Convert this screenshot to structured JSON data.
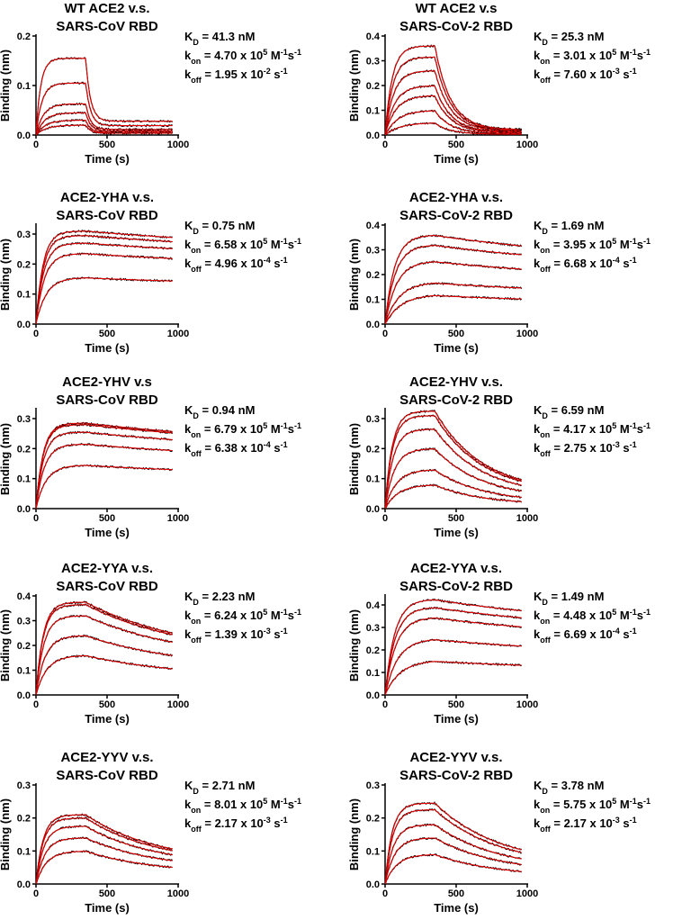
{
  "colors": {
    "data_trace": "#000000",
    "fit_curve": "#e00000",
    "axis": "#000000"
  },
  "axis_labels": {
    "x": "Time (s)",
    "y": "Binding (nm)"
  },
  "chart_data": [
    {
      "type": "line",
      "title": [
        "WT ACE2 v.s.",
        "SARS-CoV RBD"
      ],
      "xlabel": "Time (s)",
      "ylabel": "Binding (nm)",
      "xlim": [
        0,
        1000
      ],
      "ylim": [
        0,
        0.2
      ],
      "xticks": [
        0,
        500,
        1000
      ],
      "yticks": [
        0.0,
        0.1,
        0.2
      ],
      "association_end_s": 350,
      "series_plateau_nm": [
        0.155,
        0.105,
        0.063,
        0.045,
        0.03,
        0.02
      ],
      "dissociation_residual_fraction": 0.18,
      "association_rate_per_s": 0.03,
      "dissociation_rate_per_s": 0.03,
      "kinetics": {
        "kd_value": "41.3 nM",
        "kon_value": "4.70 x 10",
        "kon_exp": "5",
        "koff_value": "1.95 x 10",
        "koff_exp": "-2"
      }
    },
    {
      "type": "line",
      "title": [
        "WT ACE2 v.s",
        "SARS-CoV-2 RBD"
      ],
      "xlabel": "Time (s)",
      "ylabel": "Binding (nm)",
      "xlim": [
        0,
        1000
      ],
      "ylim": [
        0,
        0.4
      ],
      "xticks": [
        0,
        500,
        1000
      ],
      "yticks": [
        0.0,
        0.1,
        0.2,
        0.3,
        0.4
      ],
      "association_end_s": 350,
      "series_plateau_nm": [
        0.36,
        0.315,
        0.26,
        0.2,
        0.16,
        0.1,
        0.05
      ],
      "dissociation_residual_fraction": 0.06,
      "association_rate_per_s": 0.02,
      "dissociation_rate_per_s": 0.009,
      "kinetics": {
        "kd_value": "25.3 nM",
        "kon_value": "3.01 x 10",
        "kon_exp": "5",
        "koff_value": "7.60 x 10",
        "koff_exp": "-3"
      }
    },
    {
      "type": "line",
      "title": [
        "ACE2-YHA v.s.",
        "SARS-CoV RBD"
      ],
      "xlabel": "Time (s)",
      "ylabel": "Binding (nm)",
      "xlim": [
        0,
        1000
      ],
      "ylim": [
        0,
        0.33
      ],
      "xticks": [
        0,
        500,
        1000
      ],
      "yticks": [
        0.0,
        0.1,
        0.2,
        0.3
      ],
      "association_end_s": 350,
      "series_plateau_nm": [
        0.31,
        0.295,
        0.27,
        0.235,
        0.155
      ],
      "dissociation_residual_fraction": 0.74,
      "association_rate_per_s": 0.02,
      "dissociation_rate_per_s": 0.0005,
      "kinetics": {
        "kd_value": "0.75 nM",
        "kon_value": "6.58 x 10",
        "kon_exp": "5",
        "koff_value": "4.96 x 10",
        "koff_exp": "-4"
      }
    },
    {
      "type": "line",
      "title": [
        "ACE2-YHA v.s.",
        "SARS-CoV-2 RBD"
      ],
      "xlabel": "Time (s)",
      "ylabel": "Binding (nm)",
      "xlim": [
        0,
        1000
      ],
      "ylim": [
        0,
        0.4
      ],
      "xticks": [
        0,
        500,
        1000
      ],
      "yticks": [
        0.0,
        0.1,
        0.2,
        0.3,
        0.4
      ],
      "association_end_s": 350,
      "series_plateau_nm": [
        0.36,
        0.32,
        0.255,
        0.17,
        0.12
      ],
      "dissociation_residual_fraction": 0.66,
      "association_rate_per_s": 0.015,
      "dissociation_rate_per_s": 0.0007,
      "kinetics": {
        "kd_value": "1.69 nM",
        "kon_value": "3.95 x 10",
        "kon_exp": "5",
        "koff_value": "6.68 x 10",
        "koff_exp": "-4"
      }
    },
    {
      "type": "line",
      "title": [
        "ACE2-YHV v.s",
        "SARS-CoV RBD"
      ],
      "xlabel": "Time (s)",
      "ylabel": "Binding (nm)",
      "xlim": [
        0,
        1000
      ],
      "ylim": [
        0,
        0.33
      ],
      "xticks": [
        0,
        500,
        1000
      ],
      "yticks": [
        0.0,
        0.1,
        0.2,
        0.3
      ],
      "association_end_s": 350,
      "series_plateau_nm": [
        0.285,
        0.28,
        0.255,
        0.215,
        0.145
      ],
      "dissociation_residual_fraction": 0.68,
      "association_rate_per_s": 0.02,
      "dissociation_rate_per_s": 0.0006,
      "kinetics": {
        "kd_value": "0.94 nM",
        "kon_value": "6.79 x 10",
        "kon_exp": "5",
        "koff_value": "6.38 x 10",
        "koff_exp": "-4"
      }
    },
    {
      "type": "line",
      "title": [
        "ACE2-YHV v.s.",
        "SARS-CoV-2 RBD"
      ],
      "xlabel": "Time (s)",
      "ylabel": "Binding (nm)",
      "xlim": [
        0,
        1000
      ],
      "ylim": [
        0,
        0.33
      ],
      "xticks": [
        0,
        500,
        1000
      ],
      "yticks": [
        0.0,
        0.1,
        0.2,
        0.3
      ],
      "association_end_s": 350,
      "series_plateau_nm": [
        0.325,
        0.31,
        0.265,
        0.2,
        0.13,
        0.08
      ],
      "dissociation_residual_fraction": 0.16,
      "association_rate_per_s": 0.02,
      "dissociation_rate_per_s": 0.003,
      "kinetics": {
        "kd_value": "6.59 nM",
        "kon_value": "4.17 x 10",
        "kon_exp": "5",
        "koff_value": "2.75 x 10",
        "koff_exp": "-3"
      }
    },
    {
      "type": "line",
      "title": [
        "ACE2-YYA v.s.",
        "SARS-CoV RBD"
      ],
      "xlabel": "Time (s)",
      "ylabel": "Binding (nm)",
      "xlim": [
        0,
        1000
      ],
      "ylim": [
        0,
        0.4
      ],
      "xticks": [
        0,
        500,
        1000
      ],
      "yticks": [
        0.0,
        0.1,
        0.2,
        0.3,
        0.4
      ],
      "association_end_s": 350,
      "series_plateau_nm": [
        0.375,
        0.365,
        0.32,
        0.24,
        0.16
      ],
      "dissociation_residual_fraction": 0.42,
      "association_rate_per_s": 0.02,
      "dissociation_rate_per_s": 0.0014,
      "kinetics": {
        "kd_value": "2.23 nM",
        "kon_value": "6.24 x 10",
        "kon_exp": "5",
        "koff_value": "1.39 x 10",
        "koff_exp": "-3"
      }
    },
    {
      "type": "line",
      "title": [
        "ACE2-YYA v.s.",
        "SARS-CoV-2 RBD"
      ],
      "xlabel": "Time (s)",
      "ylabel": "Binding (nm)",
      "xlim": [
        0,
        1000
      ],
      "ylim": [
        0,
        0.44
      ],
      "xticks": [
        0,
        500,
        1000
      ],
      "yticks": [
        0.0,
        0.1,
        0.2,
        0.3,
        0.4
      ],
      "association_end_s": 350,
      "series_plateau_nm": [
        0.425,
        0.39,
        0.345,
        0.25,
        0.155
      ],
      "dissociation_residual_fraction": 0.67,
      "association_rate_per_s": 0.015,
      "dissociation_rate_per_s": 0.0007,
      "kinetics": {
        "kd_value": "1.49 nM",
        "kon_value": "4.48 x 10",
        "kon_exp": "5",
        "koff_value": "6.69 x 10",
        "koff_exp": "-4"
      }
    },
    {
      "type": "line",
      "title": [
        "ACE2-YYV v.s.",
        "SARS-CoV RBD"
      ],
      "xlabel": "Time (s)",
      "ylabel": "Binding (nm)",
      "xlim": [
        0,
        1000
      ],
      "ylim": [
        0,
        0.3
      ],
      "xticks": [
        0,
        500,
        1000
      ],
      "yticks": [
        0.0,
        0.1,
        0.2,
        0.3
      ],
      "association_end_s": 350,
      "series_plateau_nm": [
        0.21,
        0.2,
        0.175,
        0.14,
        0.1
      ],
      "dissociation_residual_fraction": 0.3,
      "association_rate_per_s": 0.02,
      "dissociation_rate_per_s": 0.002,
      "kinetics": {
        "kd_value": "2.71 nM",
        "kon_value": "8.01 x 10",
        "kon_exp": "5",
        "koff_value": "2.17 x 10",
        "koff_exp": "-3"
      }
    },
    {
      "type": "line",
      "title": [
        "ACE2-YYV v.s.",
        "SARS-CoV-2 RBD"
      ],
      "xlabel": "Time (s)",
      "ylabel": "Binding (nm)",
      "xlim": [
        0,
        1000
      ],
      "ylim": [
        0,
        0.3
      ],
      "xticks": [
        0,
        500,
        1000
      ],
      "yticks": [
        0.0,
        0.1,
        0.2,
        0.3
      ],
      "association_end_s": 350,
      "series_plateau_nm": [
        0.245,
        0.225,
        0.18,
        0.14,
        0.09
      ],
      "dissociation_residual_fraction": 0.22,
      "association_rate_per_s": 0.02,
      "dissociation_rate_per_s": 0.0022,
      "kinetics": {
        "kd_value": "3.78 nM",
        "kon_value": "5.75 x 10",
        "kon_exp": "5",
        "koff_value": "2.17 x 10",
        "koff_exp": "-3"
      }
    }
  ]
}
